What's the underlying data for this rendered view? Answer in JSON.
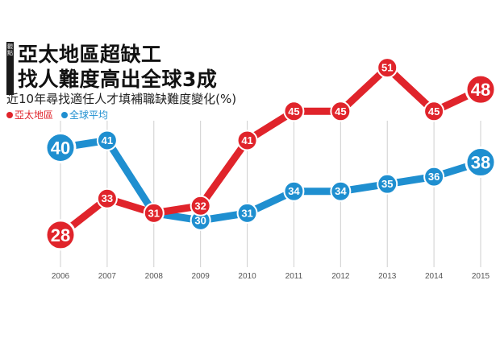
{
  "header": {
    "tag": "觀點",
    "title_line1": "亞太地區超缺工",
    "title_line2": "找人難度高出全球3成",
    "subtitle": "近10年尋找適任人才填補職缺難度變化(%)"
  },
  "colors": {
    "series_red": "#e0242b",
    "series_blue": "#1f8fd0",
    "grid": "#cfcfcf",
    "axis_text": "#555555"
  },
  "chart_data": {
    "type": "line",
    "title": "亞太地區超缺工 找人難度高出全球3成",
    "subtitle": "近10年尋找適任人才填補職缺難度變化(%)",
    "x": [
      "2006",
      "2007",
      "2008",
      "2009",
      "2010",
      "2011",
      "2012",
      "2013",
      "2014",
      "2015"
    ],
    "ylim": [
      26,
      53
    ],
    "grid": true,
    "legend_position": "top-left",
    "series": [
      {
        "name": "亞太地區",
        "color": "#e0242b",
        "values": [
          28,
          33,
          31,
          32,
          41,
          45,
          45,
          51,
          45,
          48
        ]
      },
      {
        "name": "全球平均",
        "color": "#1f8fd0",
        "values": [
          40,
          41,
          31,
          30,
          31,
          34,
          34,
          35,
          36,
          38
        ]
      }
    ]
  }
}
